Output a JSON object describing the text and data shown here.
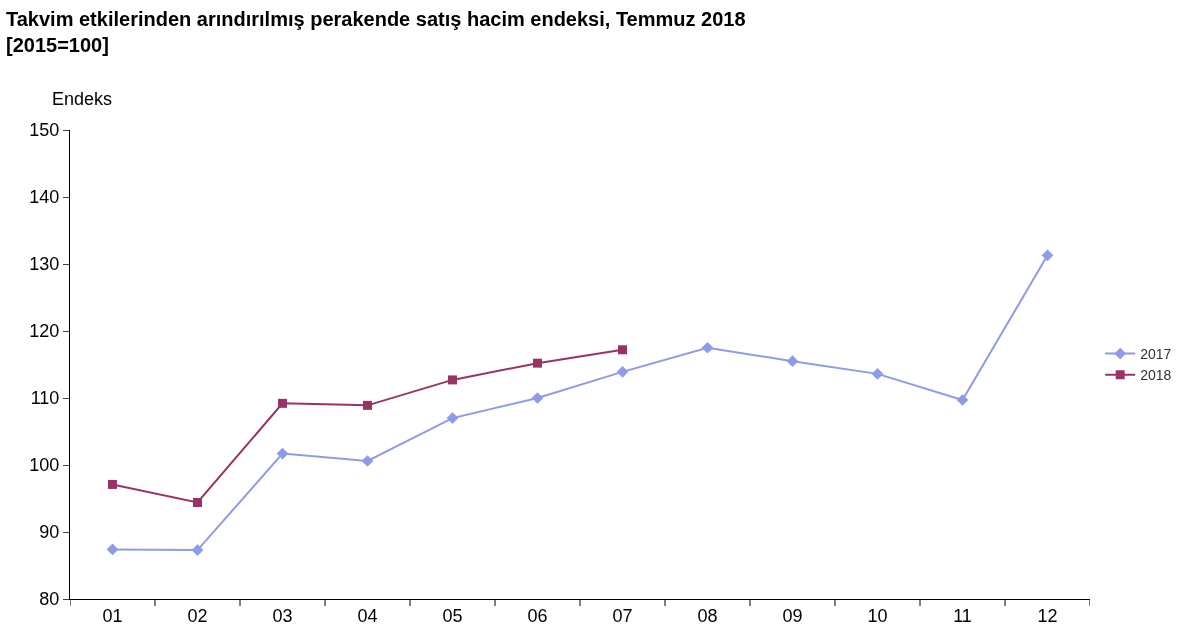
{
  "chart_data": {
    "type": "line",
    "title": "Takvim etkilerinden arındırılmış perakende satış hacim endeksi, Temmuz 2018",
    "subtitle": "[2015=100]",
    "ylabel": "Endeks",
    "categories": [
      "01",
      "02",
      "03",
      "04",
      "05",
      "06",
      "07",
      "08",
      "09",
      "10",
      "11",
      "12"
    ],
    "series": [
      {
        "name": "2017",
        "color": "#8f9be6",
        "marker": "diamond",
        "values": [
          87.4,
          87.3,
          101.7,
          100.6,
          107.0,
          110.0,
          113.9,
          117.5,
          115.5,
          113.6,
          109.7,
          131.3
        ]
      },
      {
        "name": "2018",
        "color": "#993366",
        "marker": "square",
        "values": [
          97.1,
          94.4,
          109.2,
          108.9,
          112.7,
          115.2,
          117.2,
          null,
          null,
          null,
          null,
          null
        ]
      }
    ],
    "ylim": [
      80,
      150
    ],
    "yticks": [
      80,
      90,
      100,
      110,
      120,
      130,
      140,
      150
    ],
    "legend": "right",
    "line_style": "solid"
  }
}
